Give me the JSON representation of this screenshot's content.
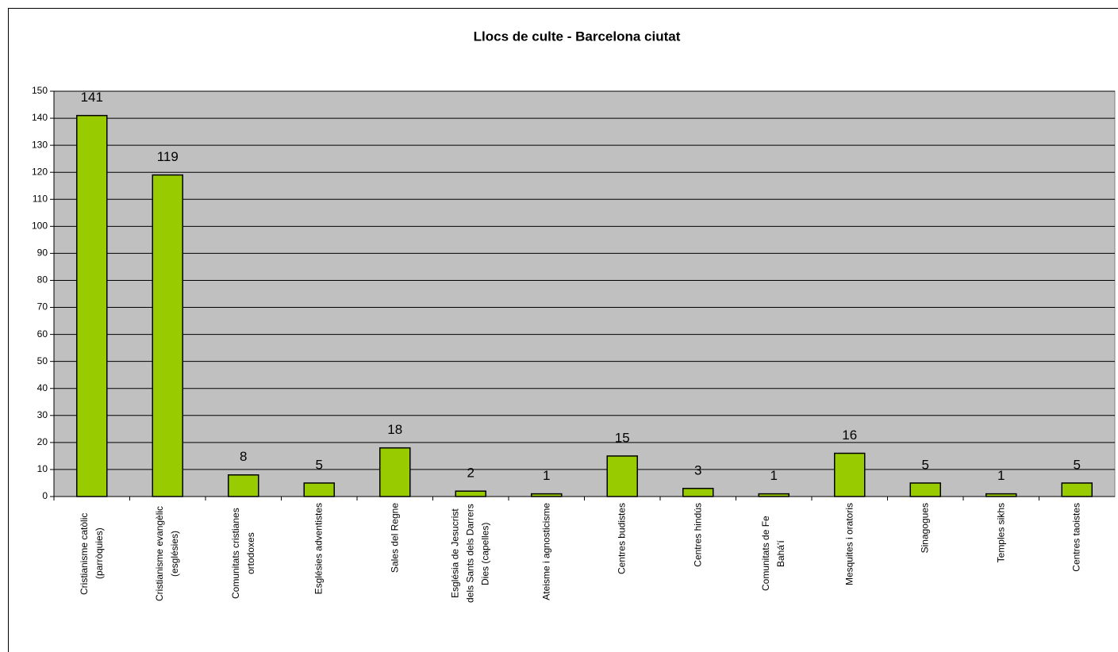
{
  "chart_data": {
    "type": "bar",
    "title": "Llocs de culte - Barcelona ciutat",
    "categories": [
      "Cristianisme catòlic (parròquies)",
      "Cristianisme evangèlic (esglésies)",
      "Comunitats cristianes ortodoxes",
      "Esglésies adventistes",
      "Sales del Regne",
      "Església de Jesucrist dels Sants dels Darrers Dies (capelles)",
      "Ateisme i agnosticisme",
      "Centres budistes",
      "Centres hindús",
      "Comunitats de Fe Bahá'í",
      "Mesquites i oratoris",
      "Sinagogues",
      "Temples sikhs",
      "Centres taoistes"
    ],
    "values": [
      141,
      119,
      8,
      5,
      18,
      2,
      1,
      15,
      3,
      1,
      16,
      5,
      1,
      5
    ],
    "color": "#99cc00",
    "ylim": [
      0,
      150
    ],
    "yticks": [
      0,
      10,
      20,
      30,
      40,
      50,
      60,
      70,
      80,
      90,
      100,
      110,
      120,
      130,
      140,
      150
    ],
    "grid": true
  }
}
